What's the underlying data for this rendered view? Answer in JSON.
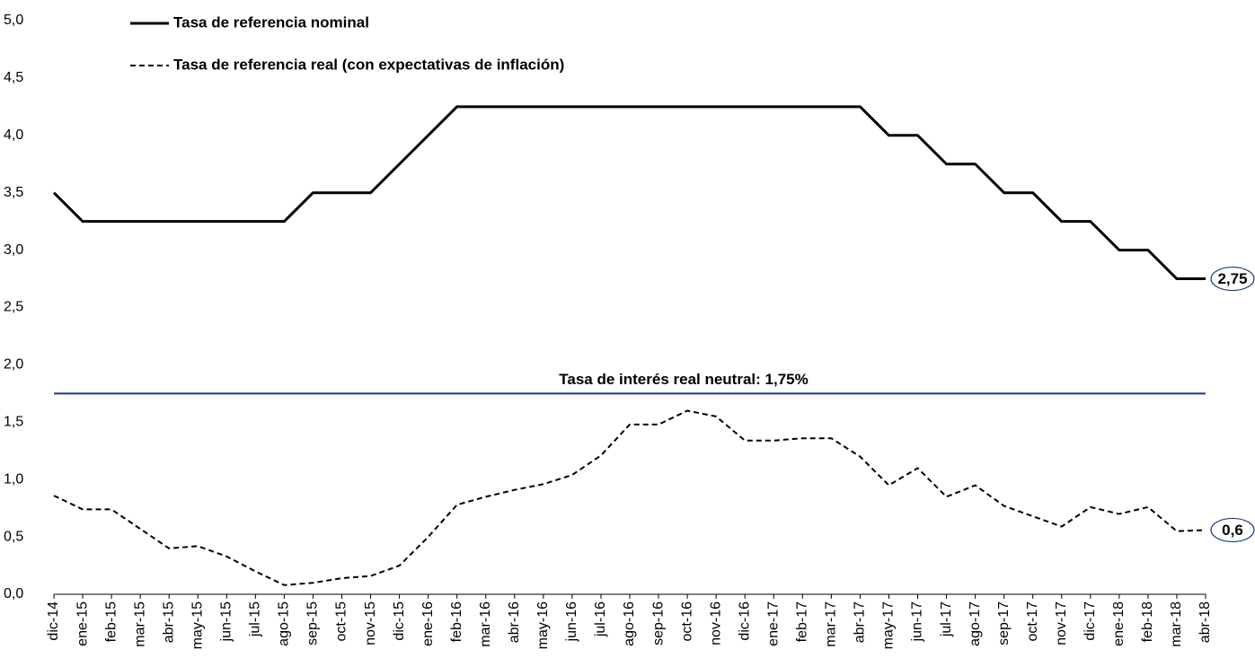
{
  "chart_data": {
    "type": "line",
    "categories": [
      "dic-14",
      "ene-15",
      "feb-15",
      "mar-15",
      "abr-15",
      "may-15",
      "jun-15",
      "jul-15",
      "ago-15",
      "sep-15",
      "oct-15",
      "nov-15",
      "dic-15",
      "ene-16",
      "feb-16",
      "mar-16",
      "abr-16",
      "may-16",
      "jun-16",
      "jul-16",
      "ago-16",
      "sep-16",
      "oct-16",
      "nov-16",
      "dic-16",
      "ene-17",
      "feb-17",
      "mar-17",
      "abr-17",
      "may-17",
      "jun-17",
      "jul-17",
      "ago-17",
      "sep-17",
      "oct-17",
      "nov-17",
      "dic-17",
      "ene-18",
      "feb-18",
      "mar-18",
      "abr-18"
    ],
    "series": [
      {
        "name": "Tasa de referencia nominal",
        "color": "#000000",
        "dash": "solid",
        "values": [
          3.5,
          3.25,
          3.25,
          3.25,
          3.25,
          3.25,
          3.25,
          3.25,
          3.25,
          3.5,
          3.5,
          3.5,
          3.75,
          4.0,
          4.25,
          4.25,
          4.25,
          4.25,
          4.25,
          4.25,
          4.25,
          4.25,
          4.25,
          4.25,
          4.25,
          4.25,
          4.25,
          4.25,
          4.25,
          4.0,
          4.0,
          3.75,
          3.75,
          3.5,
          3.5,
          3.25,
          3.25,
          3.0,
          3.0,
          2.75,
          2.75
        ],
        "value_labels": [
          null,
          null,
          null,
          null,
          null,
          null,
          null,
          null,
          null,
          null,
          null,
          null,
          null,
          null,
          null,
          null,
          null,
          null,
          null,
          null,
          null,
          null,
          null,
          null,
          null,
          null,
          null,
          null,
          null,
          null,
          null,
          null,
          null,
          null,
          null,
          null,
          null,
          null,
          null,
          null,
          "2,75"
        ]
      },
      {
        "name": "Tasa de referencia real (con expectativas de inflación)",
        "color": "#000000",
        "dash": "dashed",
        "values": [
          0.86,
          0.74,
          0.74,
          0.57,
          0.4,
          0.42,
          0.33,
          0.2,
          0.08,
          0.1,
          0.14,
          0.16,
          0.25,
          0.5,
          0.78,
          0.85,
          0.91,
          0.96,
          1.04,
          1.21,
          1.48,
          1.48,
          1.6,
          1.55,
          1.34,
          1.34,
          1.36,
          1.36,
          1.2,
          0.95,
          1.1,
          0.85,
          0.95,
          0.77,
          0.68,
          0.59,
          0.76,
          0.7,
          0.76,
          0.55,
          0.56
        ],
        "value_labels": [
          null,
          null,
          null,
          null,
          null,
          null,
          null,
          null,
          null,
          null,
          null,
          null,
          null,
          null,
          null,
          null,
          null,
          null,
          null,
          null,
          null,
          null,
          null,
          null,
          null,
          null,
          null,
          null,
          null,
          null,
          null,
          null,
          null,
          null,
          null,
          null,
          null,
          null,
          null,
          null,
          "0,6"
        ]
      }
    ],
    "reference_line": {
      "value": 1.75,
      "label": "Tasa de interés real neutral: 1,75%",
      "color": "#1f3a7a"
    },
    "ylim": [
      0,
      5
    ],
    "yticks": [
      {
        "value": 0,
        "label": "0,0"
      },
      {
        "value": 0.5,
        "label": "0,5"
      },
      {
        "value": 1,
        "label": "1,0"
      },
      {
        "value": 1.5,
        "label": "1,5"
      },
      {
        "value": 2,
        "label": "2,0"
      },
      {
        "value": 2.5,
        "label": "2,5"
      },
      {
        "value": 3,
        "label": "3,0"
      },
      {
        "value": 3.5,
        "label": "3,5"
      },
      {
        "value": 4,
        "label": "4,0"
      },
      {
        "value": 4.5,
        "label": "4,5"
      },
      {
        "value": 5,
        "label": "5,0"
      }
    ],
    "grid": false,
    "legend": "top-left"
  }
}
